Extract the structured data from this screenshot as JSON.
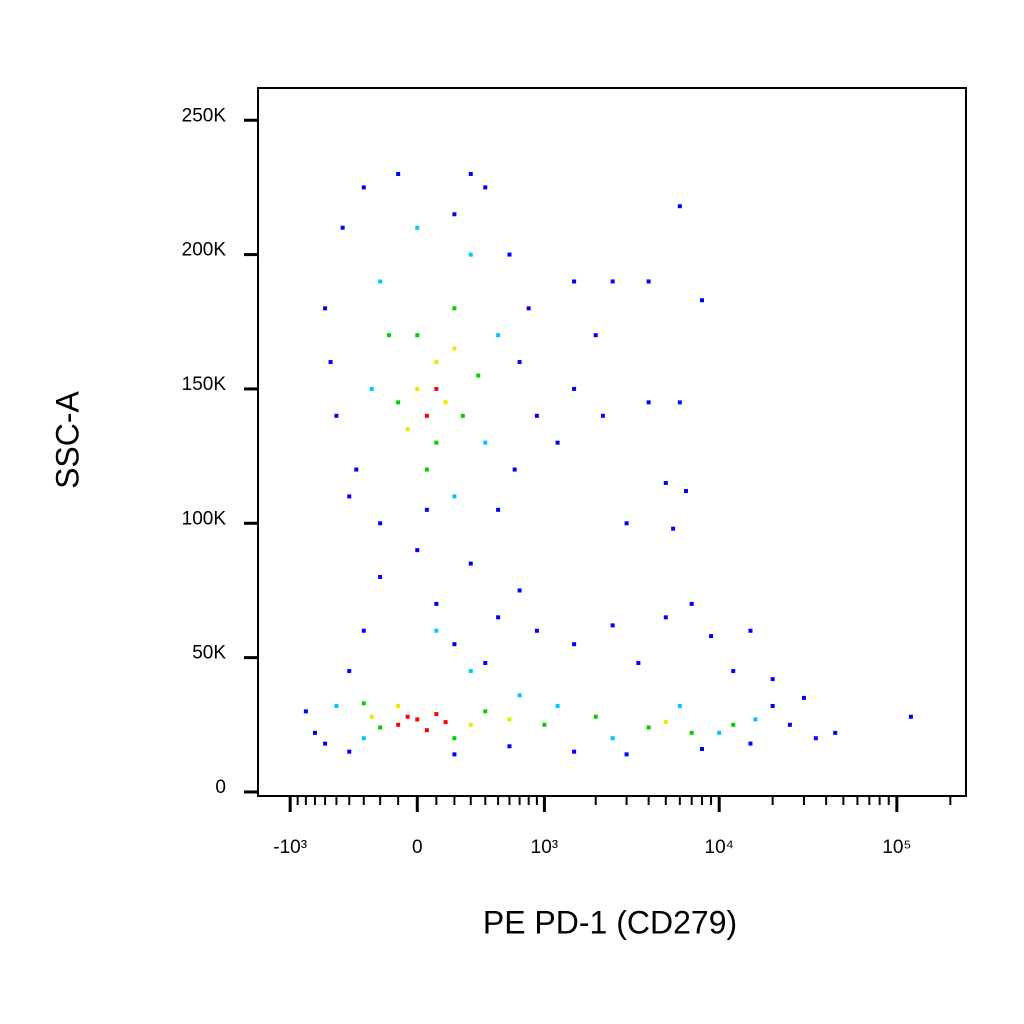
{
  "chart_data": {
    "type": "scatter",
    "x_label": "PE PD-1 (CD279)",
    "y_label": "SSC-A",
    "x_scale": "biexponential",
    "xlim": [
      -1550,
      245000
    ],
    "xticks": [
      {
        "value": -1000,
        "label": "-10³"
      },
      0,
      {
        "value": 1000,
        "label": "10³"
      },
      {
        "value": 10000,
        "label": "10⁴"
      },
      {
        "value": 100000,
        "label": "10⁵"
      }
    ],
    "xminor": [
      -900,
      -800,
      -700,
      -600,
      -500,
      -400,
      -300,
      -200,
      -100,
      100,
      200,
      300,
      400,
      500,
      600,
      700,
      800,
      900,
      2000,
      3000,
      4000,
      5000,
      6000,
      7000,
      8000,
      9000,
      20000,
      30000,
      40000,
      50000,
      60000,
      70000,
      80000,
      90000,
      200000
    ],
    "ylim": [
      -1500,
      262000
    ],
    "yticks": [
      0,
      {
        "value": 50000,
        "label": "50K"
      },
      {
        "value": 100000,
        "label": "100K"
      },
      {
        "value": 150000,
        "label": "150K"
      },
      {
        "value": 200000,
        "label": "200K"
      },
      {
        "value": 250000,
        "label": "250K"
      }
    ],
    "series": [
      {
        "color": "#0000ff",
        "x": [
          -600,
          -500,
          -450,
          -300,
          -350,
          -200,
          -100,
          50,
          200,
          400,
          600,
          700,
          650,
          500,
          800,
          300,
          -550,
          -400,
          900,
          1200,
          1500,
          2500,
          4000,
          6000,
          8000,
          2000,
          4000,
          6000,
          1500,
          2200,
          5000,
          6500,
          3000,
          5500,
          -300,
          -200,
          0,
          100,
          200,
          300,
          500,
          700,
          900,
          1500,
          2500,
          3500,
          5000,
          7000,
          9000,
          15000,
          -400,
          400,
          12000,
          20000,
          -800,
          -700,
          -600,
          -400,
          200,
          600,
          1500,
          3000,
          8000,
          15000,
          25000,
          30000,
          45000,
          35000,
          120000,
          20000
        ],
        "y": [
          180000,
          140000,
          210000,
          225000,
          120000,
          100000,
          230000,
          105000,
          215000,
          225000,
          200000,
          160000,
          120000,
          105000,
          180000,
          230000,
          160000,
          110000,
          140000,
          130000,
          190000,
          190000,
          190000,
          218000,
          183000,
          170000,
          145000,
          145000,
          150000,
          140000,
          115000,
          112000,
          100000,
          98000,
          60000,
          80000,
          90000,
          70000,
          55000,
          85000,
          65000,
          75000,
          60000,
          55000,
          62000,
          48000,
          65000,
          70000,
          58000,
          60000,
          45000,
          48000,
          45000,
          42000,
          30000,
          22000,
          18000,
          15000,
          14000,
          17000,
          15000,
          14000,
          16000,
          18000,
          25000,
          35000,
          22000,
          20000,
          28000,
          32000
        ]
      },
      {
        "color": "#00c8ff",
        "x": [
          -200,
          0,
          300,
          400,
          -250,
          200,
          500,
          100,
          300,
          -500,
          1200,
          2500,
          6000,
          10000,
          16000,
          -300,
          700
        ],
        "y": [
          190000,
          210000,
          200000,
          130000,
          150000,
          110000,
          170000,
          60000,
          45000,
          32000,
          32000,
          20000,
          32000,
          22000,
          27000,
          20000,
          36000
        ]
      },
      {
        "color": "#00d000",
        "x": [
          0,
          100,
          200,
          -100,
          350,
          50,
          250,
          -150,
          -300,
          400,
          1000,
          2000,
          4000,
          7000,
          12000,
          200,
          -200
        ],
        "y": [
          170000,
          130000,
          180000,
          145000,
          155000,
          120000,
          140000,
          170000,
          33000,
          30000,
          25000,
          28000,
          24000,
          22000,
          25000,
          20000,
          24000
        ]
      },
      {
        "color": "#e8e800",
        "x": [
          100,
          150,
          0,
          200,
          -50,
          -100,
          300,
          5000,
          600,
          -250
        ],
        "y": [
          160000,
          145000,
          150000,
          165000,
          135000,
          32000,
          25000,
          26000,
          27000,
          28000
        ]
      },
      {
        "color": "#ff0000",
        "x": [
          100,
          50,
          0,
          -100,
          100,
          50,
          -50,
          150
        ],
        "y": [
          150000,
          140000,
          27000,
          25000,
          29000,
          23000,
          28000,
          26000
        ]
      }
    ]
  }
}
